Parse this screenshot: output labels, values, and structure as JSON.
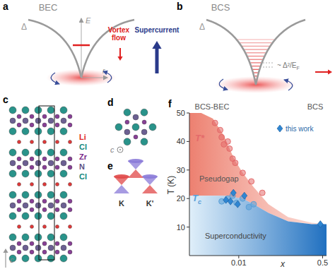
{
  "panels": {
    "a": {
      "label": "a",
      "title": "BEC",
      "gap": "Δ",
      "energy": "E",
      "radius": "r",
      "vortex_flow": "Vortex flow",
      "supercurrent": "Supercurrent"
    },
    "b": {
      "label": "b",
      "title": "BCS",
      "gap": "Δ",
      "spacing": "~ Δ²/E",
      "spacing_sub": "F"
    },
    "c": {
      "label": "c",
      "atoms": [
        "Li",
        "Cl",
        "Zr",
        "N",
        "Cl"
      ],
      "atom_colors": [
        "#e02424",
        "#12877d",
        "#7a2a8a",
        "#5c4f86",
        "#12877d"
      ],
      "axis": "c"
    },
    "d": {
      "label": "d",
      "axis": "c"
    },
    "e": {
      "label": "e",
      "valleys": [
        "K",
        "K'"
      ]
    }
  },
  "chart_data": {
    "type": "scatter",
    "label": "f",
    "regime_labels": [
      "BCS-BEC",
      "BCS"
    ],
    "x_label": "x",
    "y_label": "T (K)",
    "log": "x",
    "xlim": [
      0.001,
      0.6
    ],
    "xticks": [
      0.01,
      0.5
    ],
    "ylim": [
      0,
      50
    ],
    "yticks": [
      10,
      20,
      30,
      40,
      50
    ],
    "legend": "upper right",
    "series": [
      {
        "name": "T*",
        "color": "#e46a6a",
        "marker": "circle",
        "x": [
          0.0033,
          0.0042,
          0.0045,
          0.005,
          0.006,
          0.0065,
          0.0075,
          0.0085,
          0.012,
          0.018,
          0.03
        ],
        "values": [
          46.5,
          44,
          41.5,
          39,
          40,
          37.5,
          34,
          32.5,
          29,
          26,
          22
        ]
      },
      {
        "name": "Tc",
        "color": "#5aa0d8",
        "marker": "circle",
        "x": [
          0.0045,
          0.006,
          0.0075,
          0.009,
          0.012,
          0.016,
          0.02
        ],
        "values": [
          19,
          20,
          21,
          18.5,
          20,
          17,
          18
        ]
      },
      {
        "name": "this work",
        "color": "#2f86d2",
        "marker": "diamond",
        "x": [
          0.0055,
          0.0068,
          0.0078,
          0.0095,
          0.013,
          0.45
        ],
        "values": [
          19.5,
          19,
          22,
          18,
          21,
          11
        ]
      }
    ],
    "areas": [
      {
        "label": "Pseudogap",
        "color": "#e8604c",
        "x": [
          0.001,
          0.003,
          0.005,
          0.008,
          0.012,
          0.02,
          0.04,
          0.1,
          0.3,
          0.6
        ],
        "upper": [
          52,
          48,
          42,
          34,
          29,
          24,
          18,
          13.5,
          11.5,
          11
        ],
        "lower": [
          21,
          21,
          21,
          20.5,
          20,
          18,
          15,
          12,
          11,
          11
        ]
      },
      {
        "label": "Superconductivity",
        "color": "#2070c0",
        "x": [
          0.001,
          0.003,
          0.005,
          0.008,
          0.012,
          0.02,
          0.04,
          0.1,
          0.3,
          0.6
        ],
        "upper": [
          21,
          21,
          21,
          20.5,
          20,
          18,
          15,
          12,
          11,
          11
        ],
        "lower": [
          0,
          0,
          0,
          0,
          0,
          0,
          0,
          0,
          0,
          0
        ]
      }
    ]
  }
}
